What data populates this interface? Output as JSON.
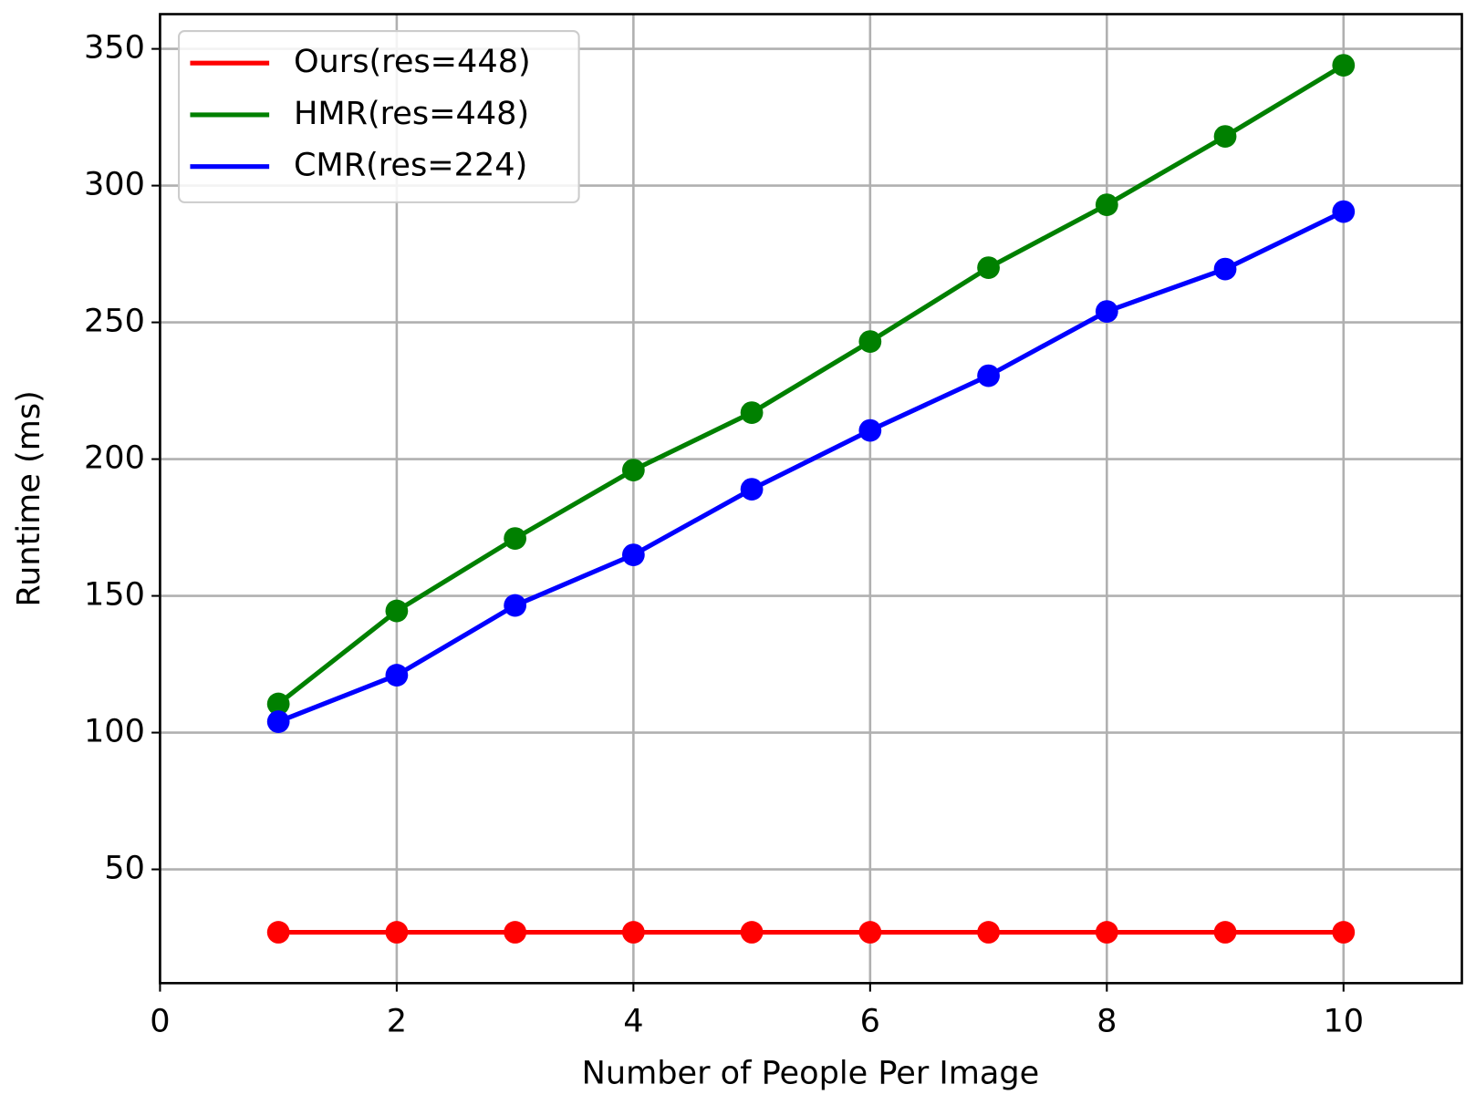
{
  "chart_data": {
    "type": "line",
    "xlabel": "Number of People Per Image",
    "ylabel": "Runtime (ms)",
    "x": [
      1,
      2,
      3,
      4,
      5,
      6,
      7,
      8,
      9,
      10
    ],
    "series": [
      {
        "name": "Ours(res=448)",
        "color": "#ff0000",
        "values": [
          27,
          27,
          27,
          27,
          27,
          27,
          27,
          27,
          27,
          27
        ]
      },
      {
        "name": "HMR(res=448)",
        "color": "#008000",
        "values": [
          110.5,
          144.5,
          171,
          196,
          217,
          243,
          270,
          293,
          318,
          344
        ]
      },
      {
        "name": "CMR(res=224)",
        "color": "#0000ff",
        "values": [
          104,
          121,
          146.5,
          165,
          189,
          210.5,
          230.5,
          254,
          269.5,
          290.5
        ]
      }
    ],
    "xlim": [
      0,
      11
    ],
    "xticks": [
      0,
      2,
      4,
      6,
      8,
      10
    ],
    "ylim": [
      8.4,
      362.7
    ],
    "yticks": [
      50,
      100,
      150,
      200,
      250,
      300,
      350
    ],
    "grid": true,
    "legend": "upper left"
  }
}
